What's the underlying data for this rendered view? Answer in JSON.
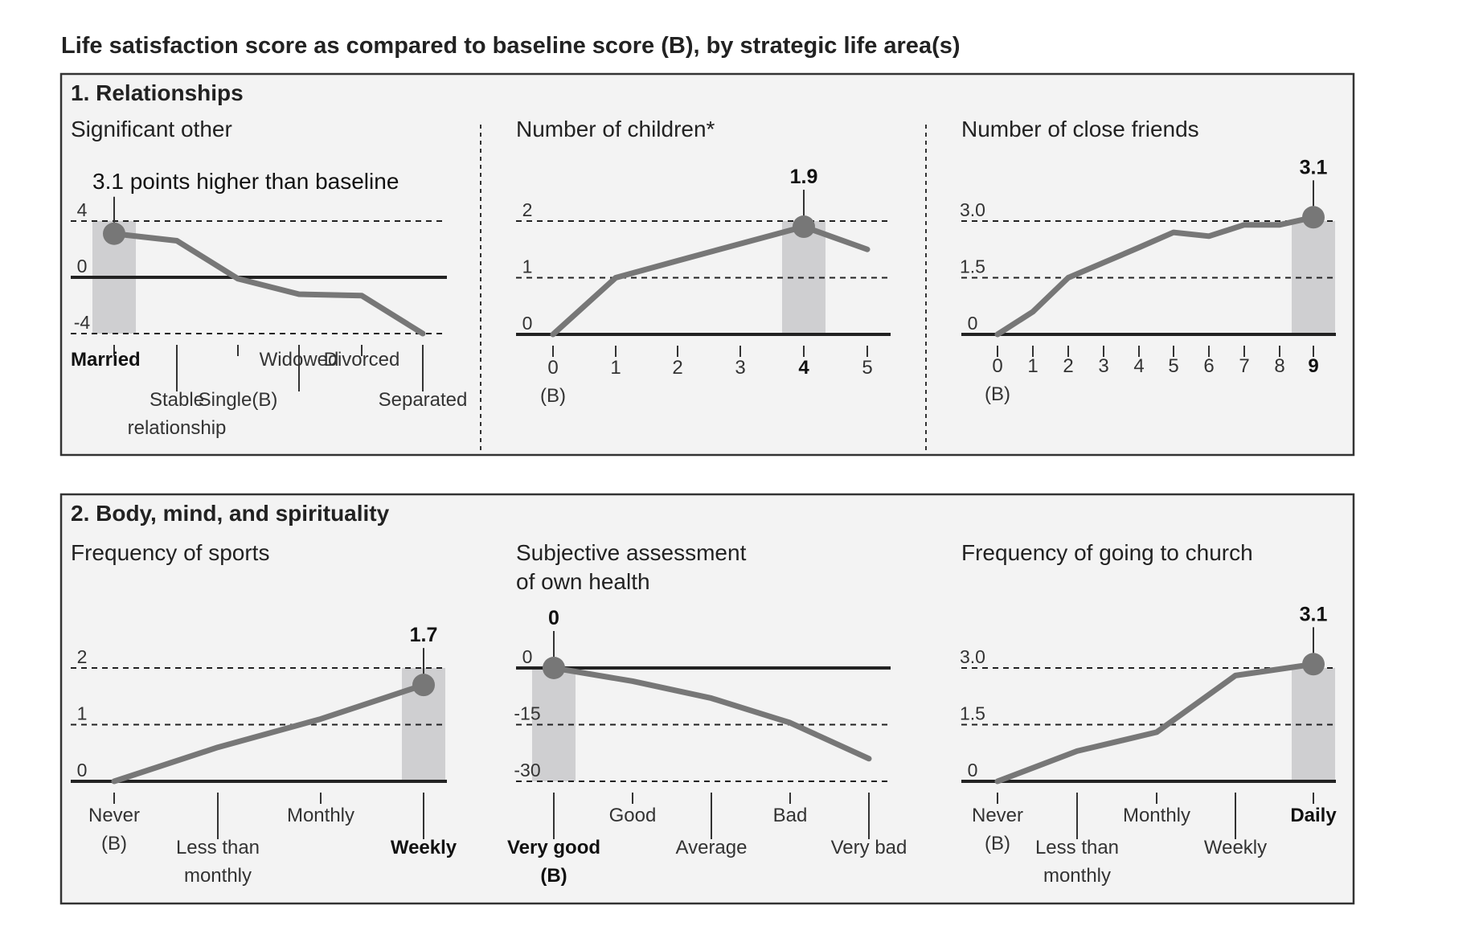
{
  "title": "Life satisfaction score as compared to baseline score (B), by strategic life area(s)",
  "sections": [
    {
      "label": "1. Relationships"
    },
    {
      "label": "2. Body, mind, and spirituality"
    }
  ],
  "colors": {
    "line": "#777777",
    "highlight": "#cfcfd1",
    "panel": "#f3f3f3",
    "border": "#333333"
  },
  "chart_data": [
    {
      "type": "line",
      "title": "Significant other",
      "callout": "3.1 points higher than baseline",
      "categories": [
        "Married",
        "Stable relationship",
        "Single(B)",
        "Widowed",
        "Divorced",
        "Separated"
      ],
      "values": [
        3.1,
        2.6,
        -0.1,
        -1.2,
        -1.3,
        -4.0
      ],
      "yticks": [
        "4",
        "0",
        "-4"
      ],
      "ylim": [
        -4,
        4
      ],
      "highlight_index": 0,
      "zero_line": 0
    },
    {
      "type": "line",
      "title": "Number of children*",
      "callout": "1.9",
      "categories": [
        "0",
        "1",
        "2",
        "3",
        "4",
        "5"
      ],
      "baseline_note": "(B)",
      "values": [
        0,
        1.0,
        1.3,
        1.6,
        1.9,
        1.5
      ],
      "yticks": [
        "2",
        "1",
        "0"
      ],
      "ylim": [
        0,
        2
      ],
      "highlight_index": 4,
      "zero_line": 0
    },
    {
      "type": "line",
      "title": "Number of close friends",
      "callout": "3.1",
      "categories": [
        "0",
        "1",
        "2",
        "3",
        "4",
        "5",
        "6",
        "7",
        "8",
        "9"
      ],
      "baseline_note": "(B)",
      "values": [
        0,
        0.6,
        1.5,
        1.9,
        2.3,
        2.7,
        2.6,
        2.9,
        2.9,
        3.1
      ],
      "yticks": [
        "3.0",
        "1.5",
        "0"
      ],
      "ylim": [
        0,
        3.0
      ],
      "highlight_index": 9,
      "zero_line": 0
    },
    {
      "type": "line",
      "title": "Frequency of sports",
      "callout": "1.7",
      "categories": [
        "Never (B)",
        "Less than monthly",
        "Monthly",
        "Weekly"
      ],
      "values": [
        0,
        0.6,
        1.1,
        1.7
      ],
      "yticks": [
        "2",
        "1",
        "0"
      ],
      "ylim": [
        0,
        2
      ],
      "highlight_index": 3,
      "zero_line": 0
    },
    {
      "type": "line",
      "title": "Subjective assessment of own health",
      "callout": "0",
      "categories": [
        "Very good (B)",
        "Good",
        "Average",
        "Bad",
        "Very bad"
      ],
      "values": [
        0,
        -3.5,
        -8,
        -14.5,
        -24
      ],
      "yticks": [
        "0",
        "-15",
        "-30"
      ],
      "ylim": [
        -30,
        0
      ],
      "highlight_index": 0,
      "zero_line": 0
    },
    {
      "type": "line",
      "title": "Frequency of going to church",
      "callout": "3.1",
      "categories": [
        "Never (B)",
        "Less than monthly",
        "Monthly",
        "Weekly",
        "Daily"
      ],
      "values": [
        0,
        0.8,
        1.3,
        2.8,
        3.1
      ],
      "yticks": [
        "3.0",
        "1.5",
        "0"
      ],
      "ylim": [
        0,
        3.0
      ],
      "highlight_index": 4,
      "zero_line": 0
    }
  ],
  "category_lines": [
    [
      [
        "Married"
      ],
      [
        "Stable",
        "relationship"
      ],
      [
        "Single(B)"
      ],
      [
        "Widowed"
      ],
      [
        "Divorced"
      ],
      [
        "Separated"
      ]
    ],
    [
      [
        "0",
        "(B)"
      ],
      [
        "1"
      ],
      [
        "2"
      ],
      [
        "3"
      ],
      [
        "4"
      ],
      [
        "5"
      ]
    ],
    [
      [
        "0",
        "(B)"
      ],
      [
        "1"
      ],
      [
        "2"
      ],
      [
        "3"
      ],
      [
        "4"
      ],
      [
        "5"
      ],
      [
        "6"
      ],
      [
        "7"
      ],
      [
        "8"
      ],
      [
        "9"
      ]
    ],
    [
      [
        "Never",
        "(B)"
      ],
      [
        "Less than",
        "monthly"
      ],
      [
        "Monthly"
      ],
      [
        "Weekly"
      ]
    ],
    [
      [
        "Very good",
        "(B)"
      ],
      [
        "Good"
      ],
      [
        "Average"
      ],
      [
        "Bad"
      ],
      [
        "Very bad"
      ]
    ],
    [
      [
        "Never",
        "(B)"
      ],
      [
        "Less than",
        "monthly"
      ],
      [
        "Monthly"
      ],
      [
        "Weekly"
      ],
      [
        "Daily"
      ]
    ]
  ],
  "title_lines": [
    [
      "Significant other"
    ],
    [
      "Number of children*"
    ],
    [
      "Number of close friends"
    ],
    [
      "Frequency of sports"
    ],
    [
      "Subjective assessment",
      "of own health"
    ],
    [
      "Frequency of going to church"
    ]
  ]
}
